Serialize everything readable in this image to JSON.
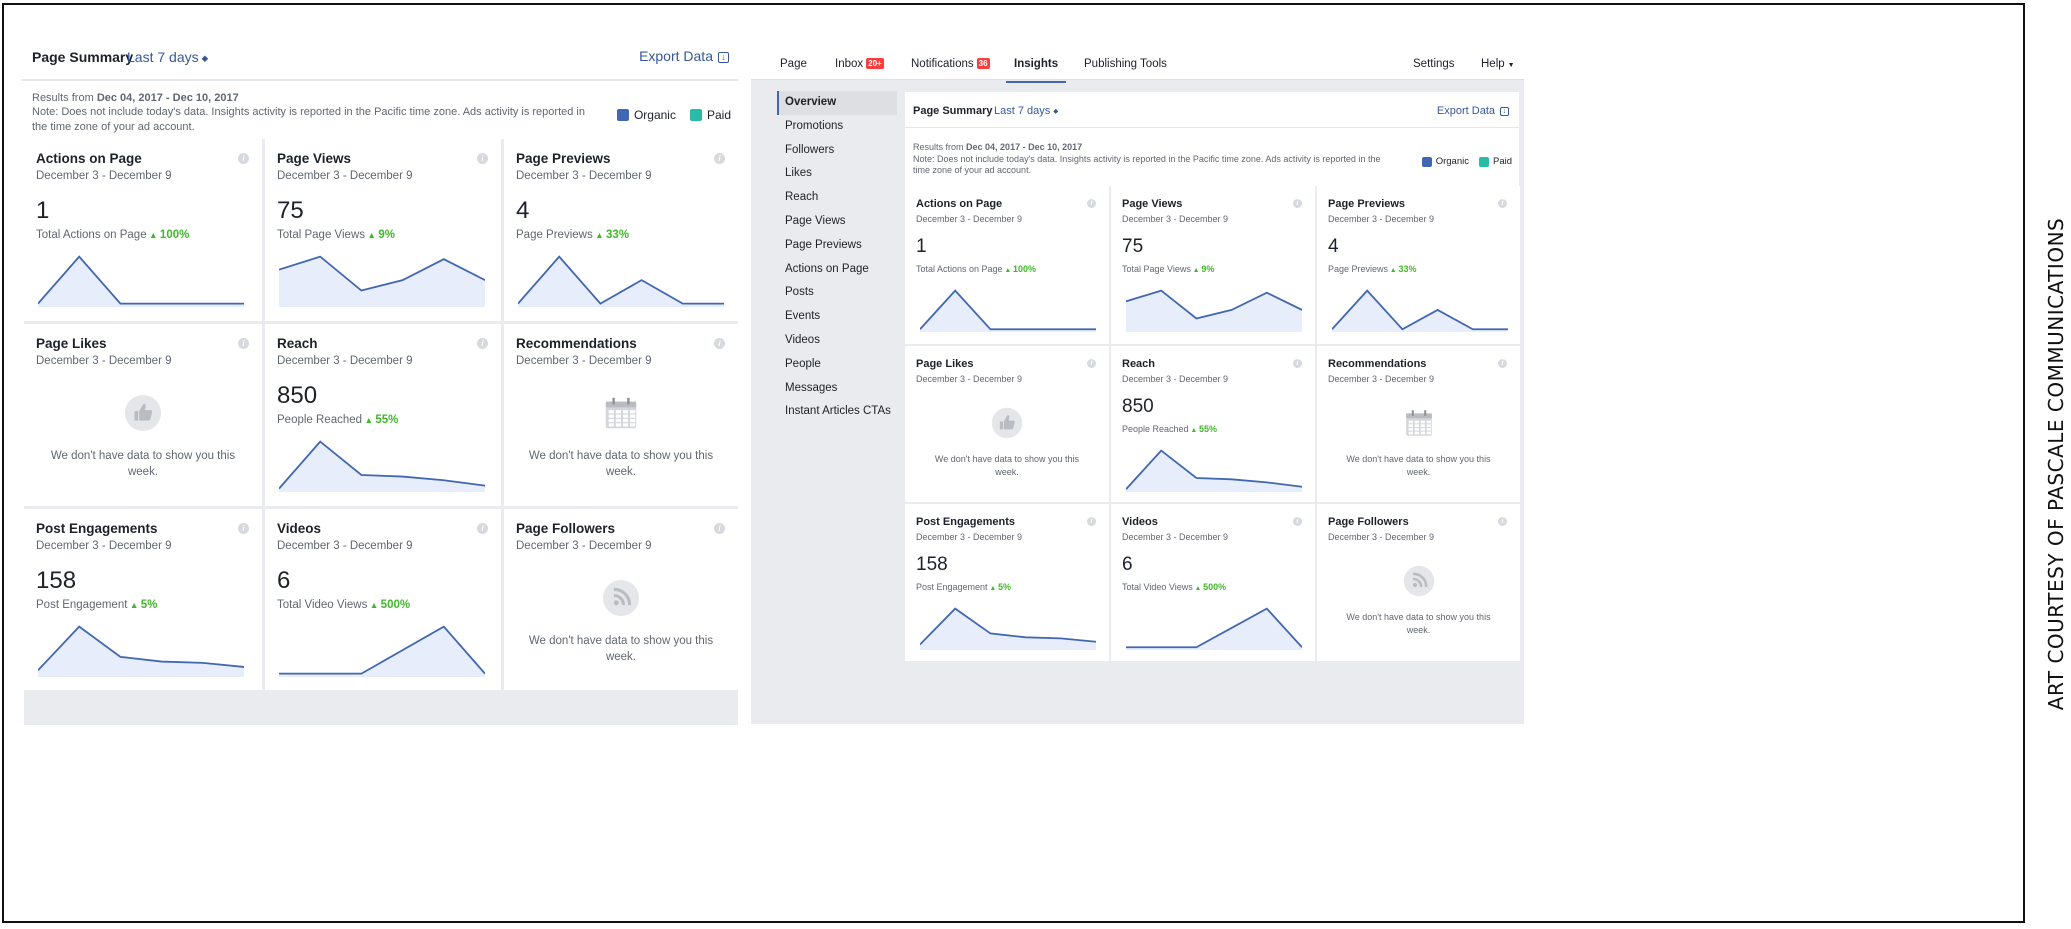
{
  "credit": "ART COURTESY OF PASCALE COMMUNICATIONS",
  "colors": {
    "link": "#365899",
    "organic": "#4267b2",
    "paid": "#2abba7",
    "positive": "#42b72a",
    "spark_fill": "#e7edfa"
  },
  "topnav": {
    "page": "Page",
    "inbox": "Inbox",
    "inbox_badge": "20+",
    "notifications": "Notifications",
    "notifications_badge": "36",
    "insights": "Insights",
    "publishing_tools": "Publishing Tools",
    "settings": "Settings",
    "help": "Help"
  },
  "sidenav": [
    "Overview",
    "Promotions",
    "Followers",
    "Likes",
    "Reach",
    "Page Views",
    "Page Previews",
    "Actions on Page",
    "Posts",
    "Events",
    "Videos",
    "People",
    "Messages",
    "Instant Articles CTAs"
  ],
  "summary": {
    "title": "Page Summary",
    "range": "Last 7 days",
    "export": "Export Data",
    "results_prefix": "Results from",
    "results_range": "Dec 04, 2017 - Dec 10, 2017",
    "note": "Note: Does not include today's data. Insights activity is reported in the Pacific time zone. Ads activity is reported in the time zone of your ad account.",
    "legend": [
      {
        "label": "Organic",
        "color": "#4267b2"
      },
      {
        "label": "Paid",
        "color": "#2abba7"
      }
    ],
    "cards": [
      {
        "title": "Actions on Page",
        "dates": "December 3 - December 9",
        "value": "1",
        "sub_label": "Total Actions on Page",
        "change": "100%",
        "spark": [
          0,
          1,
          0,
          0,
          0,
          0
        ]
      },
      {
        "title": "Page Views",
        "dates": "December 3 - December 9",
        "value": "75",
        "sub_label": "Total Page Views",
        "change": "9%",
        "spark": [
          13,
          18,
          5,
          9,
          17,
          9
        ]
      },
      {
        "title": "Page Previews",
        "dates": "December 3 - December 9",
        "value": "4",
        "sub_label": "Page Previews",
        "change": "33%",
        "spark": [
          0,
          2,
          0,
          1,
          0,
          0
        ]
      },
      {
        "title": "Page Likes",
        "dates": "December 3 - December 9",
        "empty": "We don't have data to show you this week.",
        "icon": "thumbs-up-icon"
      },
      {
        "title": "Reach",
        "dates": "December 3 - December 9",
        "value": "850",
        "sub_label": "People Reached",
        "change": "55%",
        "spark": [
          0,
          310,
          90,
          80,
          55,
          20
        ]
      },
      {
        "title": "Recommendations",
        "dates": "December 3 - December 9",
        "empty": "We don't have data to show you this week.",
        "icon": "calendar-icon"
      },
      {
        "title": "Post Engagements",
        "dates": "December 3 - December 9",
        "value": "158",
        "sub_label": "Post Engagement",
        "change": "5%",
        "spark": [
          5,
          70,
          25,
          18,
          16,
          10
        ]
      },
      {
        "title": "Videos",
        "dates": "December 3 - December 9",
        "value": "6",
        "sub_label": "Total Video Views",
        "change": "500%",
        "spark": [
          0,
          0,
          0,
          2,
          4,
          0
        ]
      },
      {
        "title": "Page Followers",
        "dates": "December 3 - December 9",
        "empty": "We don't have data to show you this week.",
        "icon": "rss-icon"
      }
    ]
  }
}
